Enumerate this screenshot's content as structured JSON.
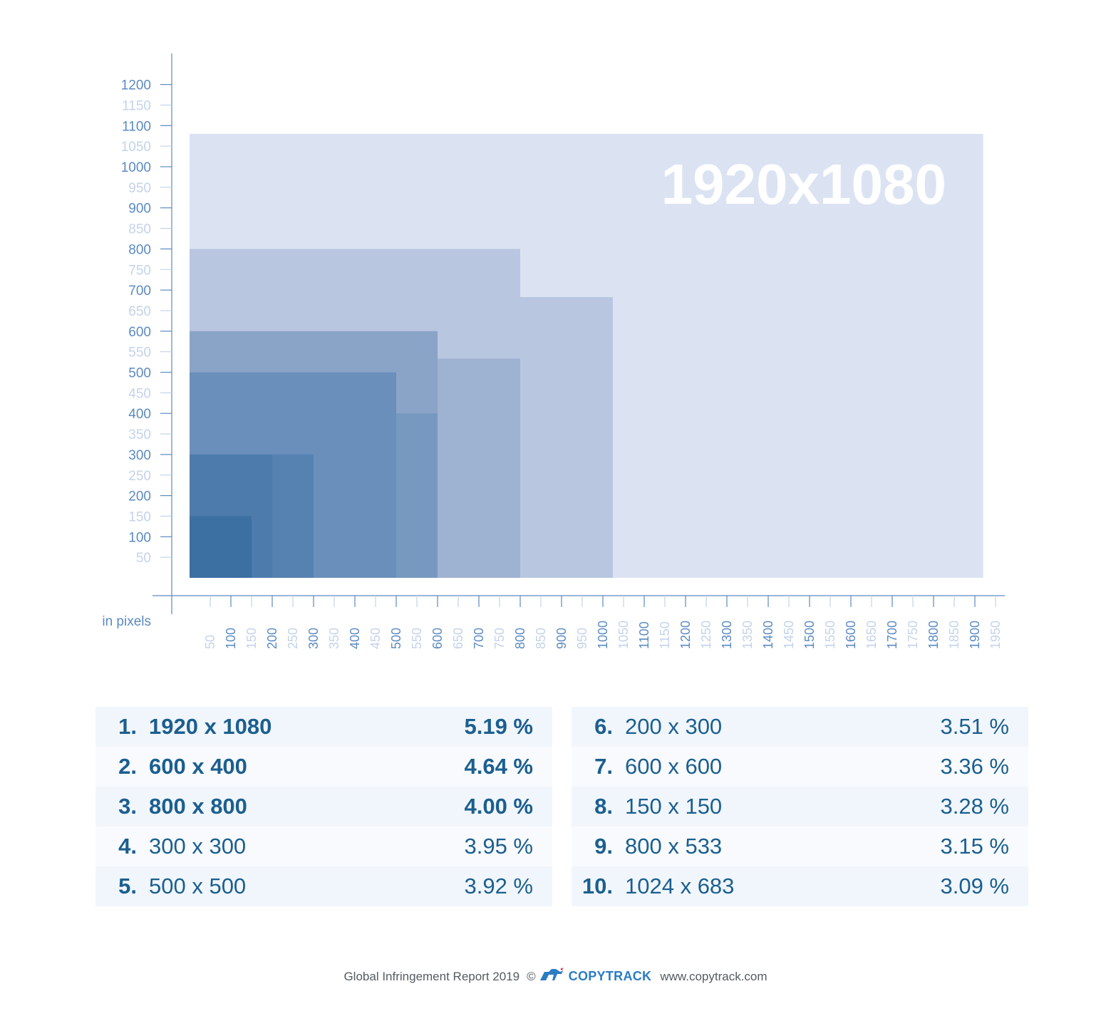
{
  "chart_data": {
    "type": "area",
    "unit_label": "in pixels",
    "highlight_label": "1920x1080",
    "x_ticks": [
      50,
      100,
      150,
      200,
      250,
      300,
      350,
      400,
      450,
      500,
      550,
      600,
      650,
      700,
      750,
      800,
      850,
      900,
      950,
      1000,
      1050,
      1100,
      1150,
      1200,
      1250,
      1300,
      1350,
      1400,
      1450,
      1500,
      1550,
      1600,
      1650,
      1700,
      1750,
      1800,
      1850,
      1900,
      1950
    ],
    "y_ticks": [
      50,
      100,
      150,
      200,
      250,
      300,
      350,
      400,
      450,
      500,
      550,
      600,
      650,
      700,
      750,
      800,
      850,
      900,
      950,
      1000,
      1050,
      1100,
      1150,
      1200
    ],
    "xlim": [
      0,
      1950
    ],
    "ylim": [
      0,
      1200
    ],
    "rectangles": [
      {
        "width": 1920,
        "height": 1080,
        "color": "#dbe3f3"
      },
      {
        "width": 800,
        "height": 800,
        "color": "#b8c6e0"
      },
      {
        "width": 1024,
        "height": 683,
        "color": "#b8c6e0"
      },
      {
        "width": 800,
        "height": 533,
        "color": "#9eb2d1"
      },
      {
        "width": 600,
        "height": 600,
        "color": "#8aa4c8"
      },
      {
        "width": 600,
        "height": 400,
        "color": "#7799c0"
      },
      {
        "width": 500,
        "height": 500,
        "color": "#6a8fbb"
      },
      {
        "width": 300,
        "height": 300,
        "color": "#5682b2"
      },
      {
        "width": 200,
        "height": 300,
        "color": "#4d7bac"
      },
      {
        "width": 150,
        "height": 150,
        "color": "#3c6fa2"
      }
    ]
  },
  "rankings": {
    "left": [
      {
        "rank": "1.",
        "size": "1920  x 1080",
        "percent": "5.19 %",
        "bold": true
      },
      {
        "rank": "2.",
        "size": "600 x 400",
        "percent": "4.64 %",
        "bold": true
      },
      {
        "rank": "3.",
        "size": "800 x 800",
        "percent": "4.00 %",
        "bold": true
      },
      {
        "rank": "4.",
        "size": "300 x 300",
        "percent": "3.95 %",
        "bold": false
      },
      {
        "rank": "5.",
        "size": "500 x 500",
        "percent": "3.92 %",
        "bold": false
      }
    ],
    "right": [
      {
        "rank": "6.",
        "size": "200 x 300",
        "percent": "3.51 %",
        "bold": false
      },
      {
        "rank": "7.",
        "size": "600 x 600",
        "percent": "3.36 %",
        "bold": false
      },
      {
        "rank": "8.",
        "size": "150 x 150",
        "percent": "3.28 %",
        "bold": false
      },
      {
        "rank": "9.",
        "size": "800 x 533",
        "percent": "3.15 %",
        "bold": false
      },
      {
        "rank": "10.",
        "size": "1024 x 683",
        "percent": "3.09 %",
        "bold": false
      }
    ]
  },
  "footer": {
    "report": "Global Infringement Report 2019",
    "copyright": "©",
    "brand": "COPYTRACK",
    "website": "www.copytrack.com"
  },
  "colors": {
    "axis": "#5b8ac2",
    "tick_major": "#5b8ac2",
    "tick_minor": "#c3d3ea",
    "table_text": "#1b5f8f",
    "brand": "#2a7cc4"
  }
}
